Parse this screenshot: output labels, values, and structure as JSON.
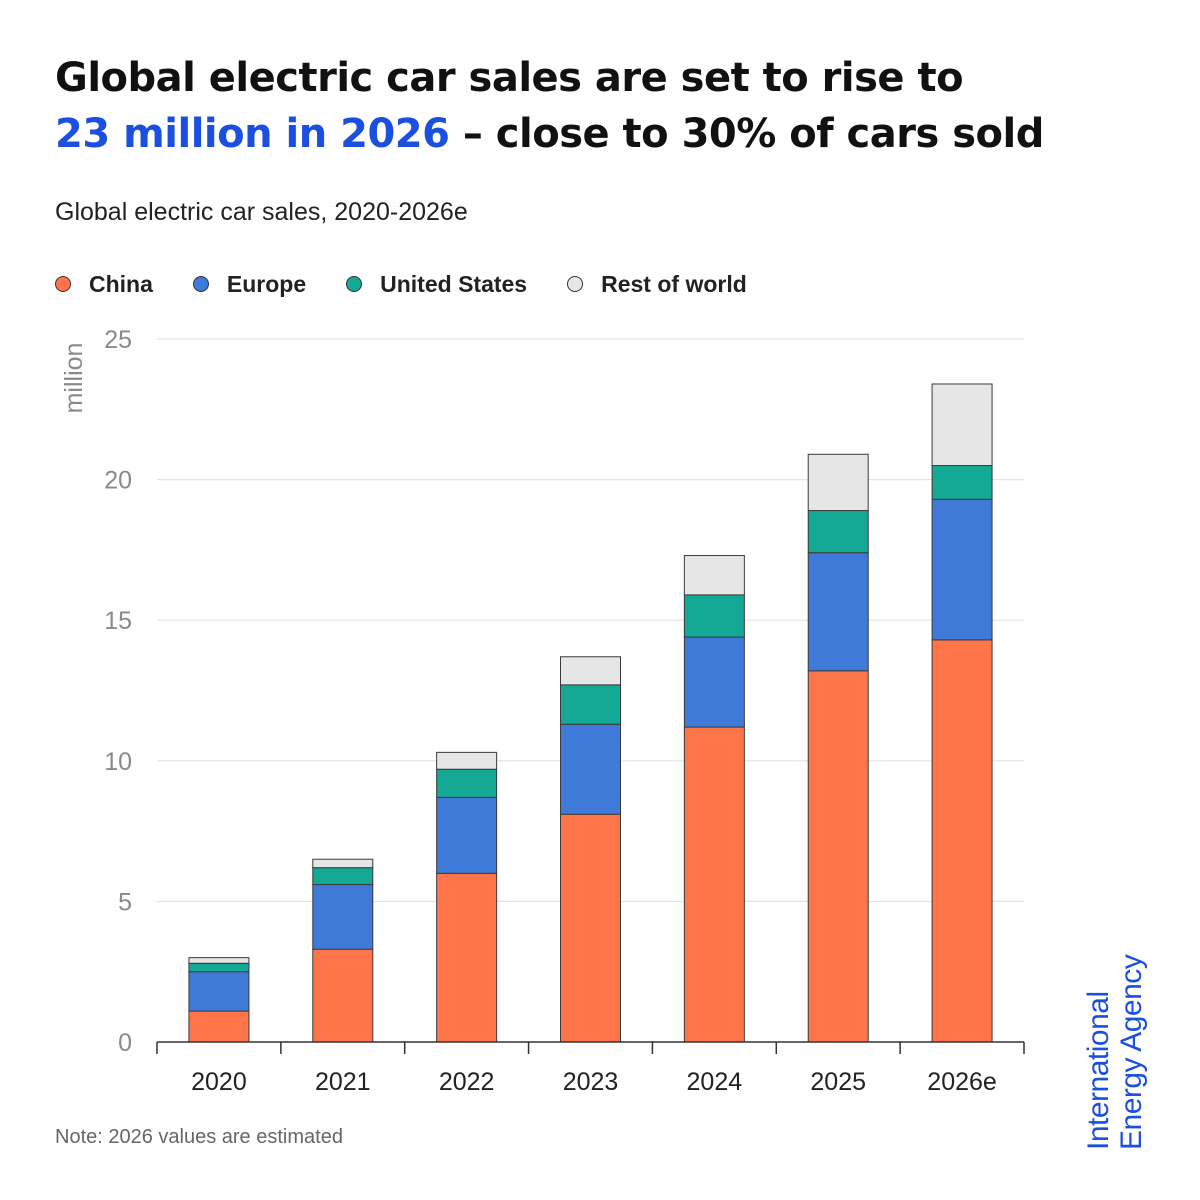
{
  "headline": {
    "line1": "Global electric car sales are set to rise to",
    "highlight": "23 million in 2026",
    "line2_rest": " – close to 30% of cars sold"
  },
  "colors": {
    "highlight": "#1a4fe0",
    "china": "#ff7448",
    "europe": "#3f7ad8",
    "united_states": "#14a995",
    "rest_of_world": "#e6e6e6"
  },
  "logo": {
    "line1": "International",
    "line2": "Energy Agency"
  },
  "note": "Note: 2026 values are estimated",
  "chart_data": {
    "type": "bar",
    "stacked": true,
    "title": "Global electric car sales, 2020-2026e",
    "xlabel": "",
    "ylabel": "million",
    "ylim": [
      0,
      25
    ],
    "yticks": [
      0,
      5,
      10,
      15,
      20,
      25
    ],
    "grid": true,
    "legend_position": "top-left",
    "categories": [
      "2020",
      "2021",
      "2022",
      "2023",
      "2024",
      "2025",
      "2026e"
    ],
    "series": [
      {
        "name": "China",
        "color": "#ff7448",
        "values": [
          1.1,
          3.3,
          6.0,
          8.1,
          11.2,
          13.2,
          14.3
        ]
      },
      {
        "name": "Europe",
        "color": "#3f7ad8",
        "values": [
          1.4,
          2.3,
          2.7,
          3.2,
          3.2,
          4.2,
          5.0
        ]
      },
      {
        "name": "United States",
        "color": "#14a995",
        "values": [
          0.3,
          0.6,
          1.0,
          1.4,
          1.5,
          1.5,
          1.2
        ]
      },
      {
        "name": "Rest of world",
        "color": "#e6e6e6",
        "values": [
          0.2,
          0.3,
          0.6,
          1.0,
          1.4,
          2.0,
          2.9
        ]
      }
    ]
  }
}
